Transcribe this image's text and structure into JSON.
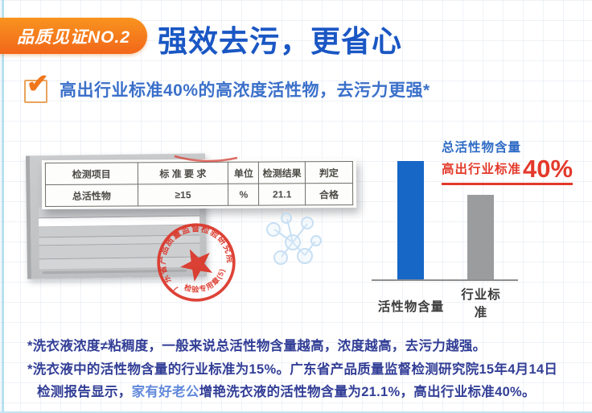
{
  "header": {
    "badge": "品质见证NO.2",
    "title": "强效去污，更省心"
  },
  "claim": "高出行业标准40%的高浓度活性物，去污力更强*",
  "report": {
    "table": {
      "headers": [
        "检测项目",
        "标 准 要 求",
        "单位",
        "检测结果",
        "判定"
      ],
      "row": [
        "总活性物",
        "≥15",
        "%",
        "21.1",
        "合格"
      ]
    },
    "stamp": {
      "ring_text": "广东省产品质量监督检验研究院",
      "label": "检验专用章(5)"
    }
  },
  "chart": {
    "callout_line1": "总活性物含量",
    "callout_line2": "高出行业标准",
    "callout_value": "40%"
  },
  "chart_data": {
    "type": "bar",
    "categories": [
      "活性物含量",
      "行业标准"
    ],
    "values": [
      21.1,
      15
    ],
    "unit": "%",
    "annotation": "总活性物含量高出行业标准40%",
    "colors": [
      "#1667c6",
      "#9b9c9e"
    ],
    "ylim": [
      0,
      25
    ],
    "axis": "y-axis hidden, only baseline shown",
    "legend": "none"
  },
  "footnotes": {
    "line1": "*洗衣液浓度≠粘稠度，一般来说总活性物含量越高，浓度越高，去污力越强。",
    "line2": "*洗衣液中的活性物含量的行业标准为15%。广东省产品质量监督检测研究院15年4月14日",
    "line3_prefix": "检测报告显示，",
    "line3_brand": "家有好老公",
    "line3_suffix": "增艳洗衣液的活性物含量为21.1%，高出行业标准40%。"
  },
  "colors": {
    "accent_orange": "#f3731d",
    "title_blue": "#1a57c4",
    "claim_blue": "#3b70ca",
    "bar_blue": "#1667c6",
    "bar_gray": "#9b9c9e",
    "callout_red": "#e33a2b",
    "footnote_navy": "#323e96",
    "brand_blue": "#6289db",
    "stamp_red": "#dc3528"
  }
}
